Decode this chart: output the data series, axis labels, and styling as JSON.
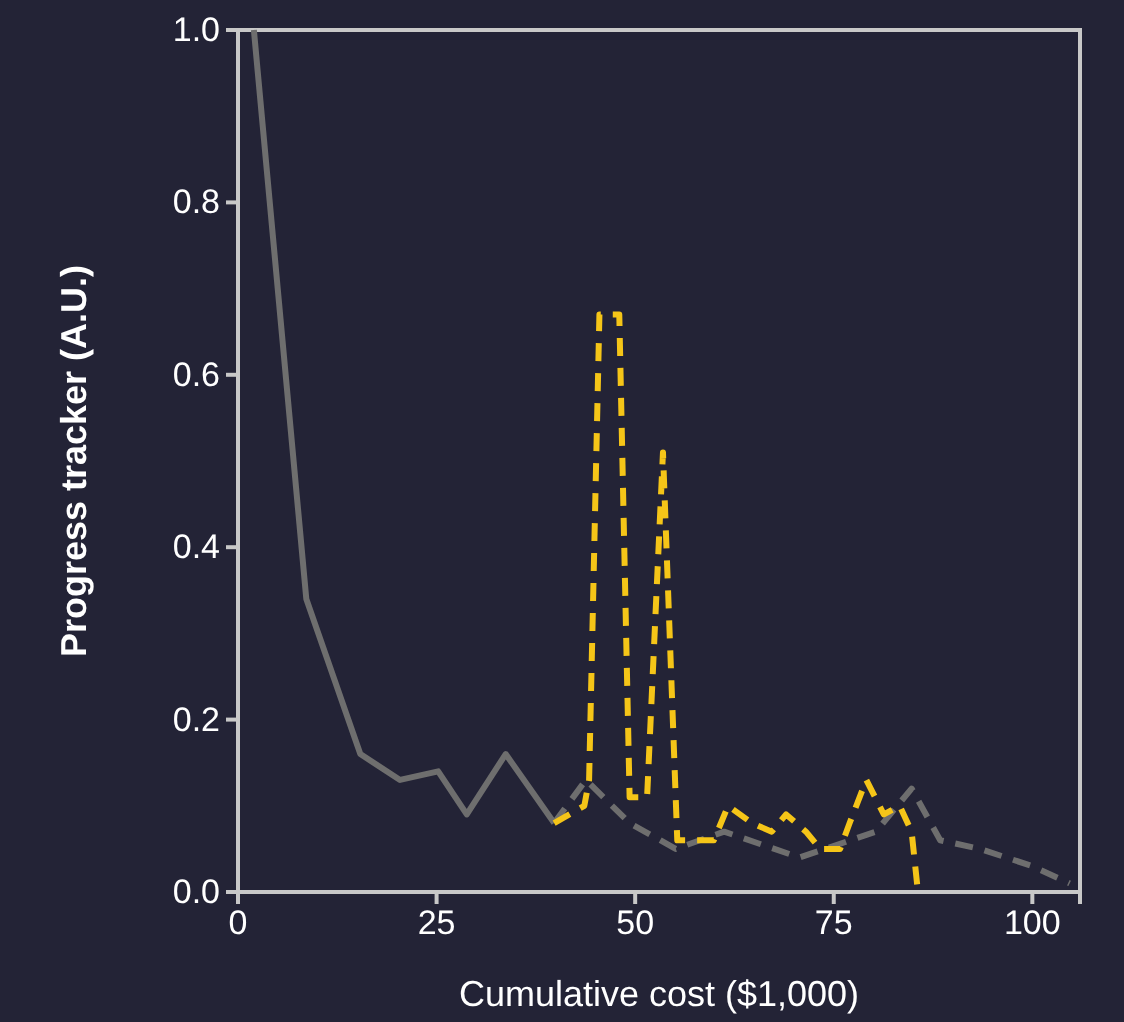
{
  "chart_data": {
    "type": "line",
    "xlabel": "Cumulative cost ($1,000)",
    "ylabel": "Progress tracker (A.U.)",
    "xlim": [
      0,
      106
    ],
    "xticks": [
      0,
      25,
      50,
      75,
      100
    ],
    "ylim": [
      0,
      1
    ],
    "yticks": [
      {
        "value": 0,
        "label": "0.0"
      },
      {
        "value": 0.2,
        "label": "0.2"
      },
      {
        "value": 0.4,
        "label": "0.4"
      },
      {
        "value": 0.6,
        "label": "0.6"
      },
      {
        "value": 0.8,
        "label": "0.8"
      },
      {
        "value": 1,
        "label": "1.0"
      }
    ],
    "series": [
      {
        "color": "#6e6e6e",
        "line_style": "solid",
        "x": [
          2,
          8.6,
          15.4,
          20.4,
          25.2,
          28.8,
          33.7,
          39.8
        ],
        "values": [
          1.0,
          0.34,
          0.16,
          0.13,
          0.14,
          0.09,
          0.16,
          0.08
        ]
      },
      {
        "color": "#6e6e6e",
        "line_style": "dashed",
        "x": [
          39.8,
          43.8,
          49.3,
          55.1,
          61.2,
          70.7,
          80.3,
          84.8,
          88.4,
          93.4,
          100,
          104.7
        ],
        "values": [
          0.08,
          0.13,
          0.08,
          0.05,
          0.07,
          0.04,
          0.07,
          0.12,
          0.06,
          0.05,
          0.03,
          0.01
        ]
      },
      {
        "color": "#f5c518",
        "line_style": "dashed",
        "x": [
          39.8,
          43.6,
          44.2,
          45.5,
          48,
          49.3,
          51.5,
          53.5,
          55.3,
          59.9,
          61.7,
          64.7,
          67.2,
          69,
          71.5,
          73.3,
          75.8,
          77,
          79.1,
          81.3,
          83.3,
          84.8,
          85.6
        ],
        "values": [
          0.08,
          0.1,
          0.13,
          0.67,
          0.67,
          0.11,
          0.11,
          0.51,
          0.06,
          0.06,
          0.1,
          0.08,
          0.07,
          0.09,
          0.07,
          0.05,
          0.05,
          0.08,
          0.13,
          0.09,
          0.1,
          0.07,
          0
        ]
      }
    ]
  }
}
